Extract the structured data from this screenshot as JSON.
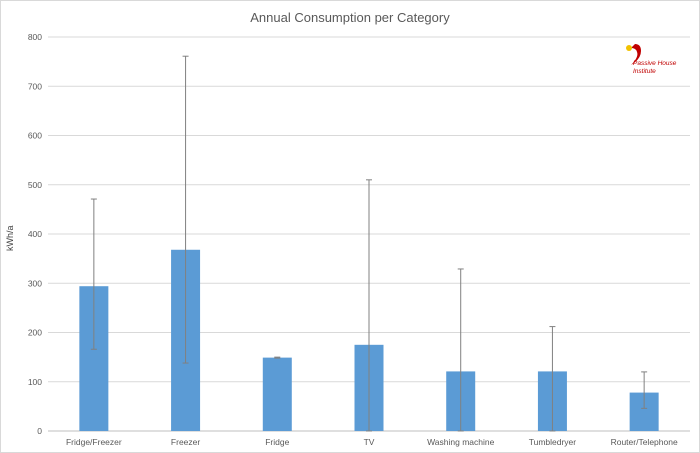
{
  "chart_data": {
    "type": "bar",
    "title": "Annual Consumption per Category",
    "xlabel": "",
    "ylabel": "kWh/a",
    "ylim": [
      0,
      800
    ],
    "yticks": [
      0,
      100,
      200,
      300,
      400,
      500,
      600,
      700,
      800
    ],
    "grid": true,
    "categories": [
      "Fridge/Freezer",
      "Freezer",
      "Fridge",
      "TV",
      "Washing machine",
      "Tumbledryer",
      "Router/Telephone"
    ],
    "values": [
      294,
      368,
      149,
      175,
      121,
      121,
      78
    ],
    "error_low": [
      166,
      138,
      148,
      0,
      0,
      0,
      46
    ],
    "error_high": [
      471,
      761,
      150,
      510,
      329,
      212,
      120
    ],
    "bar_color": "#5b9bd5",
    "error_color": "#808080"
  },
  "logo": {
    "name": "passive-house-institute-logo",
    "lines": [
      "Passive House",
      "Institute"
    ],
    "color": "#c00000"
  }
}
